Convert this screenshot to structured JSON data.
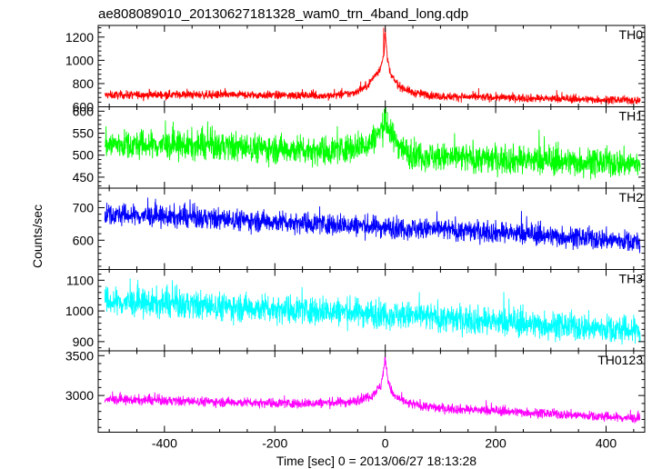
{
  "title": "ae808089010_20130627181328_wam0_trn_4band_long.qdp",
  "xlabel": "Time [sec] 0 = 2013/06/27 18:13:28",
  "ylabel": "Counts/sec",
  "chart_data": {
    "type": "line",
    "title": "ae808089010_20130627181328_wam0_trn_4band_long.qdp",
    "xlabel": "Time [sec] 0 = 2013/06/27 18:13:28",
    "ylabel": "Counts/sec",
    "xlim": [
      -520,
      470
    ],
    "data_x_range": [
      -508,
      462
    ],
    "x_ticks": [
      -400,
      -200,
      0,
      200,
      400
    ],
    "grid": false,
    "legend": "none",
    "panels": [
      {
        "name": "TH0",
        "color": "#ff0000",
        "ylim": [
          600,
          1300
        ],
        "y_ticks": [
          600,
          800,
          1000,
          1200
        ],
        "profile": [
          [
            -508,
            700
          ],
          [
            -400,
            705
          ],
          [
            -200,
            700
          ],
          [
            -100,
            695
          ],
          [
            -60,
            715
          ],
          [
            -35,
            770
          ],
          [
            -20,
            860
          ],
          [
            -8,
            940
          ],
          [
            -2,
            1060
          ],
          [
            0,
            1270
          ],
          [
            4,
            1000
          ],
          [
            10,
            870
          ],
          [
            25,
            780
          ],
          [
            50,
            720
          ],
          [
            100,
            690
          ],
          [
            200,
            680
          ],
          [
            300,
            670
          ],
          [
            462,
            655
          ]
        ],
        "noise": 32,
        "spikes": [
          [
            -3,
            1280
          ],
          [
            -1,
            1230
          ],
          [
            2,
            1140
          ]
        ]
      },
      {
        "name": "TH1",
        "color": "#00ff00",
        "ylim": [
          425,
          610
        ],
        "y_ticks": [
          450,
          500,
          550,
          600
        ],
        "profile": [
          [
            -508,
            525
          ],
          [
            -300,
            520
          ],
          [
            -100,
            510
          ],
          [
            -30,
            525
          ],
          [
            -5,
            560
          ],
          [
            0,
            580
          ],
          [
            10,
            545
          ],
          [
            40,
            505
          ],
          [
            100,
            495
          ],
          [
            300,
            487
          ],
          [
            462,
            480
          ]
        ],
        "noise": 30,
        "spikes": [
          [
            -2,
            605
          ],
          [
            1,
            610
          ],
          [
            4,
            598
          ]
        ]
      },
      {
        "name": "TH2",
        "color": "#0000ff",
        "ylim": [
          510,
          760
        ],
        "y_ticks": [
          600,
          700
        ],
        "profile": [
          [
            -508,
            680
          ],
          [
            -300,
            665
          ],
          [
            -100,
            650
          ],
          [
            0,
            640
          ],
          [
            200,
            625
          ],
          [
            462,
            595
          ]
        ],
        "noise": 30,
        "spikes": []
      },
      {
        "name": "TH3",
        "color": "#00ffff",
        "ylim": [
          870,
          1135
        ],
        "y_ticks": [
          900,
          1000,
          1100
        ],
        "profile": [
          [
            -508,
            1030
          ],
          [
            -300,
            1015
          ],
          [
            -100,
            1000
          ],
          [
            0,
            990
          ],
          [
            200,
            965
          ],
          [
            462,
            935
          ]
        ],
        "noise": 42,
        "spikes": []
      },
      {
        "name": "TH0123",
        "color": "#ff00ff",
        "ylim": [
          2540,
          3560
        ],
        "y_ticks": [
          3000,
          3500
        ],
        "profile": [
          [
            -508,
            2950
          ],
          [
            -300,
            2920
          ],
          [
            -150,
            2900
          ],
          [
            -60,
            2920
          ],
          [
            -25,
            3000
          ],
          [
            -8,
            3120
          ],
          [
            0,
            3450
          ],
          [
            6,
            3150
          ],
          [
            15,
            3000
          ],
          [
            40,
            2900
          ],
          [
            100,
            2840
          ],
          [
            250,
            2790
          ],
          [
            462,
            2710
          ]
        ],
        "noise": 55,
        "spikes": [
          [
            -1,
            3480
          ],
          [
            1,
            3420
          ]
        ]
      }
    ]
  }
}
